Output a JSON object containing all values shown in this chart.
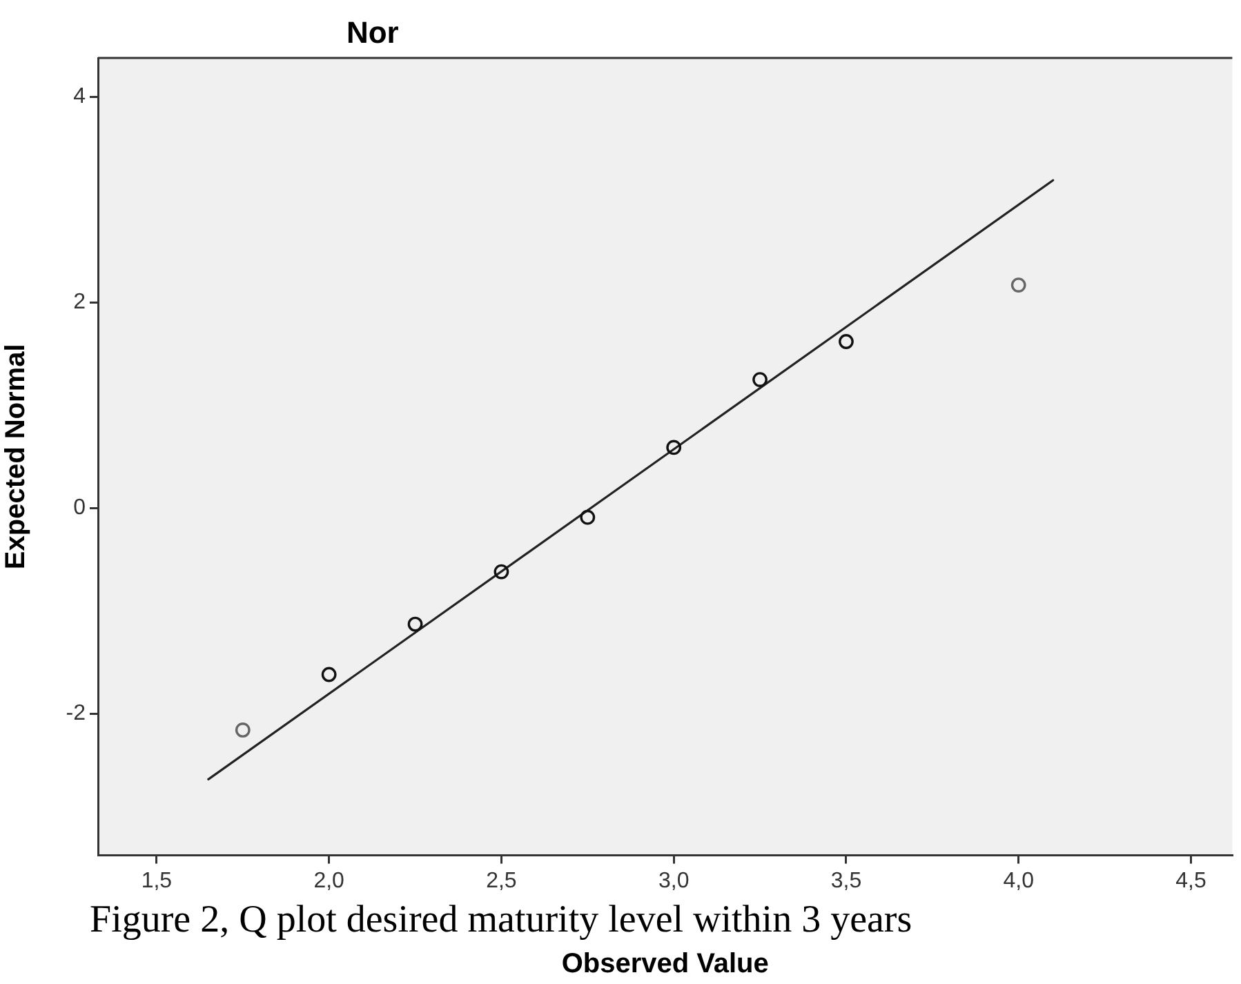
{
  "chart_data": {
    "type": "scatter",
    "title": "Nor",
    "xlabel": "Observed Value",
    "ylabel": "Expected Normal",
    "annotations": [
      "Figure 2, Q plot desired maturity level within 3 years"
    ],
    "xlim": [
      1.33,
      4.62
    ],
    "ylim": [
      -3.38,
      4.38
    ],
    "xticks": [
      {
        "value": 1.5,
        "label": "1,5"
      },
      {
        "value": 2,
        "label": "2,0"
      },
      {
        "value": 2.5,
        "label": "2,5"
      },
      {
        "value": 3,
        "label": "3,0"
      },
      {
        "value": 3.5,
        "label": "3,5"
      },
      {
        "value": 4,
        "label": "4,0"
      },
      {
        "value": 4.5,
        "label": "4,5"
      }
    ],
    "yticks": [
      -2,
      0,
      2,
      4
    ],
    "marker": "circle",
    "series": [
      {
        "x": [
          1.75,
          2,
          2.25,
          2.5,
          2.75,
          3,
          3.25,
          3.5,
          4
        ],
        "values": [
          -2.16,
          -1.62,
          -1.13,
          -0.62,
          -0.09,
          0.59,
          1.25,
          1.62,
          2.17
        ],
        "color": "#111111",
        "colors": [
          "#666666",
          "#111111",
          "#111111",
          "#111111",
          "#111111",
          "#111111",
          "#111111",
          "#111111",
          "#666666"
        ]
      },
      {
        "type": "line",
        "x": [
          1.65,
          4.1
        ],
        "values": [
          -2.64,
          3.19
        ],
        "color": "#222222",
        "marker": "none"
      }
    ]
  }
}
